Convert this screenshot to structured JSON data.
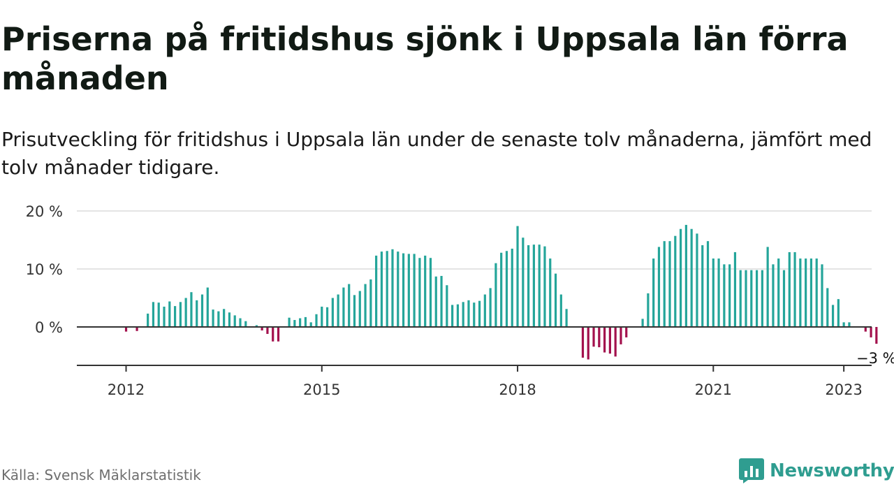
{
  "header": {
    "title": "Priserna på fritidshus sjönk i Uppsala län förra månaden",
    "subtitle": "Prisutveckling för fritidshus i Uppsala län under de senaste tolv månaderna, jämfört med tolv månader tidigare."
  },
  "footer": {
    "source": "Källa: Svensk Mäklarstatistik",
    "brand": "Newsworthy"
  },
  "colors": {
    "positive": "#24a59a",
    "negative": "#a3114d",
    "grid": "#dcdcdc",
    "axis": "#333333",
    "brand": "#2f9d90"
  },
  "icons": {
    "logo": "newsworthy-bar-chart-icon"
  },
  "chart_data": {
    "type": "bar",
    "title": "Priserna på fritidshus sjönk i Uppsala län förra månaden",
    "subtitle": "Prisutveckling för fritidshus i Uppsala län under de senaste tolv månaderna, jämfört med tolv månader tidigare.",
    "unit": "%",
    "start": "2011-01",
    "ylim": [
      -6.5,
      20
    ],
    "yticks": [
      {
        "value": 0,
        "label": "0 %"
      },
      {
        "value": 10,
        "label": "10 %"
      },
      {
        "value": 20,
        "label": "20 %"
      }
    ],
    "xticks": [
      {
        "value": "2012-01",
        "label": "2012"
      },
      {
        "value": "2015-01",
        "label": "2015"
      },
      {
        "value": "2018-01",
        "label": "2018"
      },
      {
        "value": "2021-01",
        "label": "2021"
      },
      {
        "value": "2023-01",
        "label": "2023"
      }
    ],
    "grid": true,
    "last_label": "−3 %",
    "series": [
      {
        "values": [
          null,
          null,
          null,
          null,
          null,
          null,
          null,
          null,
          null,
          null,
          null,
          null,
          -0.8,
          null,
          -0.7,
          null,
          2.3,
          4.3,
          4.2,
          3.5,
          4.4,
          3.6,
          4.3,
          5.0,
          6.0,
          4.6,
          5.6,
          6.8,
          3.0,
          2.7,
          3.1,
          2.5,
          2.0,
          1.5,
          1.0,
          null,
          0.3,
          -0.6,
          -1.2,
          -2.5,
          -2.5,
          null,
          1.6,
          1.2,
          1.5,
          1.7,
          0.8,
          2.2,
          3.5,
          3.4,
          5.0,
          5.6,
          6.8,
          7.4,
          5.5,
          6.2,
          7.4,
          8.2,
          12.3,
          13.0,
          13.1,
          13.4,
          13.0,
          12.7,
          12.6,
          12.6,
          11.9,
          12.3,
          11.9,
          8.7,
          8.8,
          7.2,
          3.8,
          3.9,
          4.3,
          4.6,
          4.2,
          4.5,
          5.6,
          6.7,
          11.0,
          12.8,
          13.1,
          13.5,
          17.4,
          15.4,
          14.1,
          14.2,
          14.2,
          13.9,
          11.8,
          9.2,
          5.6,
          3.1,
          null,
          null,
          -5.3,
          -5.6,
          -3.4,
          -3.5,
          -4.4,
          -4.6,
          -5.1,
          -3.0,
          -1.8,
          null,
          null,
          1.4,
          5.8,
          11.8,
          13.8,
          14.8,
          14.8,
          15.7,
          16.9,
          17.6,
          16.9,
          16.1,
          14.1,
          14.8,
          11.8,
          11.8,
          10.8,
          10.8,
          12.9,
          9.8,
          9.8,
          9.8,
          9.8,
          9.8,
          13.8,
          10.8,
          11.8,
          9.8,
          12.9,
          12.9,
          11.8,
          11.8,
          11.8,
          11.8,
          10.8,
          6.7,
          3.8,
          4.8,
          0.8,
          0.8,
          null,
          null,
          -0.8,
          -1.8,
          -2.9
        ]
      }
    ]
  }
}
